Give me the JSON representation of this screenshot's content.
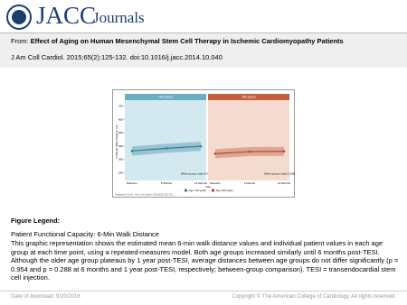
{
  "header": {
    "logo": "JACC",
    "title": "Journals"
  },
  "source": {
    "label": "From: ",
    "title": "Effect of Aging on Human Mesenchymal  Stem Cell Therapy in Ischemic Cardiomyopathy  Patients",
    "citation": "J Am Coll Cardiol. 2015;65(2):125-132. doi:10.1016/j.jacc.2014.10.040"
  },
  "figure": {
    "y_label": "6-Minute Walk Distance (m)",
    "ylim": [
      150,
      720
    ],
    "yticks": [
      200,
      300,
      400,
      500,
      600,
      700
    ],
    "x_labels": [
      "Baseline",
      "6 Months",
      "12 Months"
    ],
    "x_title": "Visit",
    "panels": [
      {
        "title": "<60 years",
        "background": "#d3e8ef",
        "header_color": "#6aaec4",
        "line_color": "#2f7f9a",
        "values": [
          365,
          385,
          400
        ],
        "note": "Within group p value 0.0001"
      },
      {
        "title": "≥60 years",
        "background": "#f3dccf",
        "header_color": "#c2603c",
        "line_color": "#b5452a",
        "values": [
          345,
          360,
          362
        ],
        "note": "Within group p value 0.0088"
      }
    ],
    "legend": [
      "Age <60 years",
      "Age ≥60 years"
    ],
    "credit": "Golpanian S, et al. J Am Coll Cardiol. 2015;65(2):125-132."
  },
  "legend": {
    "heading": "Figure Legend:",
    "subtitle": "Patient Functional Capacity: 6-Min Walk Distance",
    "body": "This graphic representation shows the estimated mean 6-min walk distance values and individual patient values in each age group at each time point, using a repeated-measures model. Both age groups increased similarly until 6 months post-TESI. Although the older age group plateaus by 1 year post-TESI, average distances between age groups do not differ significantly (p = 0.954 and p = 0.288 at 6 months and 1 year post-TESI, respectively; between-group comparison). TESI = transendocardial stem cell injection."
  },
  "footer": {
    "date": "Date of download:  9/20/2016",
    "copyright": "Copyright © The American College of Cardiology. All rights reserved."
  }
}
